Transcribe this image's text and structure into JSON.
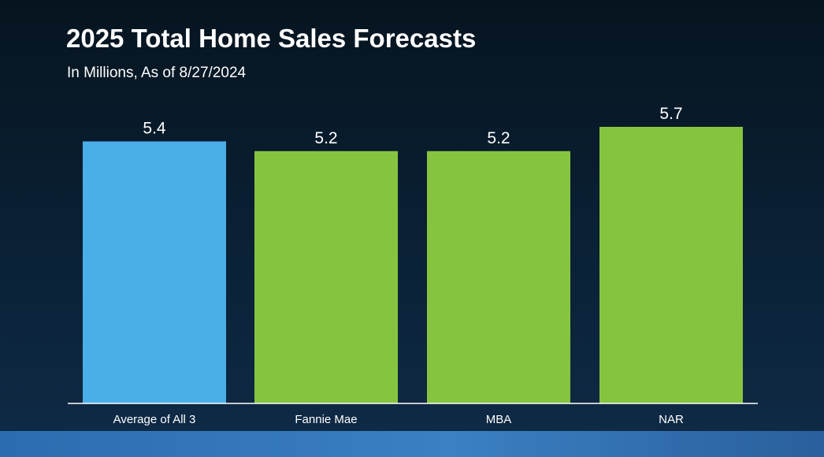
{
  "chart_data": {
    "type": "bar",
    "title": "2025 Total Home Sales Forecasts",
    "subtitle": "In Millions, As of 8/27/2024",
    "categories": [
      "Average of All 3",
      "Fannie Mae",
      "MBA",
      "NAR"
    ],
    "values": [
      5.4,
      5.2,
      5.2,
      5.7
    ],
    "value_labels": [
      "5.4",
      "5.2",
      "5.2",
      "5.7"
    ],
    "bar_colors": [
      "#4aaee8",
      "#86c440",
      "#86c440",
      "#86c440"
    ],
    "ylim": [
      0,
      6.0
    ],
    "grid": false,
    "legend": "none",
    "xlabel": "",
    "ylabel": ""
  },
  "colors": {
    "background": "#0a2136",
    "text": "#ffffff",
    "axis": "#ffffff",
    "footer": "#3a80c3"
  }
}
